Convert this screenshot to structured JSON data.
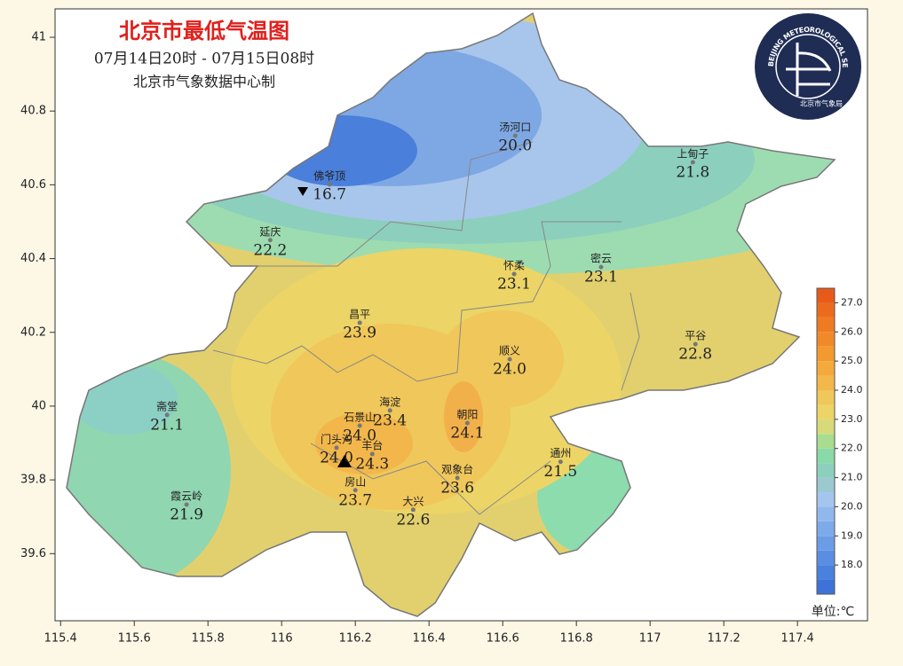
{
  "header": {
    "title": "北京市最低气温图",
    "period": "07月14日20时 - 07月15日08时",
    "producer": "北京市气象数据中心制"
  },
  "logo": {
    "ring_text": "BEIJING METEOROLOGICAL SERVICE",
    "name": "北京市气象局"
  },
  "axes": {
    "xlim": [
      115.385,
      117.59
    ],
    "ylim": [
      39.418,
      41.077
    ],
    "xticks": [
      115.4,
      115.6,
      115.8,
      116,
      116.2,
      116.4,
      116.6,
      116.8,
      117,
      117.2,
      117.4
    ],
    "yticks": [
      39.6,
      39.8,
      40,
      40.2,
      40.4,
      40.6,
      40.8,
      41
    ]
  },
  "stations": [
    {
      "name": "汤河口",
      "temp": "20.0",
      "lon": 116.634,
      "lat": 40.733
    },
    {
      "name": "上甸子",
      "temp": "21.8",
      "lon": 117.116,
      "lat": 40.661
    },
    {
      "name": "佛爷顶",
      "temp": "16.7",
      "lon": 116.13,
      "lat": 40.601
    },
    {
      "name": "延庆",
      "temp": "22.2",
      "lon": 115.969,
      "lat": 40.45
    },
    {
      "name": "怀柔",
      "temp": "23.1",
      "lon": 116.631,
      "lat": 40.358
    },
    {
      "name": "密云",
      "temp": "23.1",
      "lon": 116.867,
      "lat": 40.377
    },
    {
      "name": "昌平",
      "temp": "23.9",
      "lon": 116.212,
      "lat": 40.226
    },
    {
      "name": "平谷",
      "temp": "22.8",
      "lon": 117.123,
      "lat": 40.168
    },
    {
      "name": "顺义",
      "temp": "24.0",
      "lon": 116.619,
      "lat": 40.127
    },
    {
      "name": "海淀",
      "temp": "23.4",
      "lon": 116.294,
      "lat": 39.988
    },
    {
      "name": "石景山",
      "temp": "24.0",
      "lon": 116.212,
      "lat": 39.947
    },
    {
      "name": "朝阳",
      "temp": "24.1",
      "lon": 116.504,
      "lat": 39.954
    },
    {
      "name": "门头沟",
      "temp": "24.0",
      "lon": 116.149,
      "lat": 39.887
    },
    {
      "name": "丰台",
      "temp": "24.3",
      "lon": 116.246,
      "lat": 39.87
    },
    {
      "name": "通州",
      "temp": "21.5",
      "lon": 116.757,
      "lat": 39.849
    },
    {
      "name": "观象台",
      "temp": "23.6",
      "lon": 116.477,
      "lat": 39.805
    },
    {
      "name": "房山",
      "temp": "23.7",
      "lon": 116.2,
      "lat": 39.772
    },
    {
      "name": "大兴",
      "temp": "22.6",
      "lon": 116.357,
      "lat": 39.719
    },
    {
      "name": "斋堂",
      "temp": "21.1",
      "lon": 115.689,
      "lat": 39.976
    },
    {
      "name": "霞云岭",
      "temp": "21.9",
      "lon": 115.742,
      "lat": 39.733
    }
  ],
  "colorbar": {
    "lim": [
      17,
      27.5
    ],
    "step": 0.5,
    "unit": "单位:℃",
    "colors": [
      "#3d72d8",
      "#4a80de",
      "#5b8ee2",
      "#6c9ce6",
      "#7eaae9",
      "#91b8ec",
      "#a4c6ee",
      "#9cc8d0",
      "#8ccfbd",
      "#8ad9a8",
      "#a8dc90",
      "#d7da7a",
      "#ecd466",
      "#f0c75a",
      "#f2b84a",
      "#f3a93c",
      "#f29a30",
      "#f08a28",
      "#ee7a22",
      "#ec6a1e",
      "#e85a1a"
    ],
    "ticks": [
      {
        "value": 18,
        "label": "18.0"
      },
      {
        "value": 19,
        "label": "19.0"
      },
      {
        "value": 20,
        "label": "20.0"
      },
      {
        "value": 21,
        "label": "21.0"
      },
      {
        "value": 22,
        "label": "22.0"
      },
      {
        "value": 23,
        "label": "23.0"
      },
      {
        "value": 24,
        "label": "24.0"
      },
      {
        "value": 25,
        "label": "25.0"
      },
      {
        "value": 26,
        "label": "26.0"
      },
      {
        "value": 27,
        "label": "27.0"
      }
    ]
  }
}
